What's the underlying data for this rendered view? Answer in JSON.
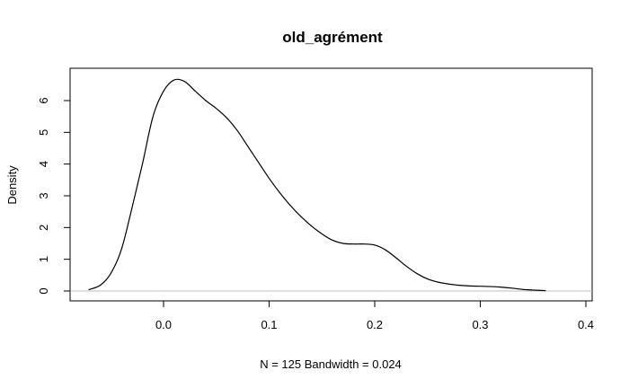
{
  "chart_data": {
    "type": "line",
    "title": "old_agrément",
    "xlabel": "N = 125   Bandwidth = 0.024",
    "ylabel": "Density",
    "xlim": [
      -0.08,
      0.4
    ],
    "ylim": [
      0,
      6.9
    ],
    "x_ticks": [
      0.0,
      0.1,
      0.2,
      0.3,
      0.4
    ],
    "y_ticks": [
      0,
      1,
      2,
      3,
      4,
      5,
      6
    ],
    "x_tick_labels": [
      "0.0",
      "0.1",
      "0.2",
      "0.3",
      "0.4"
    ],
    "y_tick_labels": [
      "0",
      "1",
      "2",
      "3",
      "4",
      "5",
      "6"
    ],
    "grid": false,
    "baseline": 0,
    "series": [
      {
        "x": [
          -0.071,
          -0.06,
          -0.05,
          -0.04,
          -0.03,
          -0.02,
          -0.01,
          0.0,
          0.01,
          0.02,
          0.03,
          0.04,
          0.05,
          0.06,
          0.07,
          0.08,
          0.09,
          0.1,
          0.11,
          0.12,
          0.13,
          0.14,
          0.15,
          0.16,
          0.17,
          0.18,
          0.19,
          0.2,
          0.21,
          0.22,
          0.23,
          0.24,
          0.25,
          0.26,
          0.27,
          0.28,
          0.29,
          0.3,
          0.31,
          0.32,
          0.33,
          0.34,
          0.35,
          0.362
        ],
        "values": [
          0.04,
          0.18,
          0.55,
          1.3,
          2.6,
          4.0,
          5.5,
          6.3,
          6.65,
          6.6,
          6.3,
          6.0,
          5.75,
          5.45,
          5.05,
          4.55,
          4.05,
          3.55,
          3.1,
          2.7,
          2.35,
          2.05,
          1.8,
          1.6,
          1.5,
          1.48,
          1.48,
          1.45,
          1.3,
          1.05,
          0.78,
          0.55,
          0.38,
          0.28,
          0.22,
          0.18,
          0.16,
          0.15,
          0.14,
          0.12,
          0.09,
          0.05,
          0.03,
          0.01
        ]
      }
    ]
  }
}
